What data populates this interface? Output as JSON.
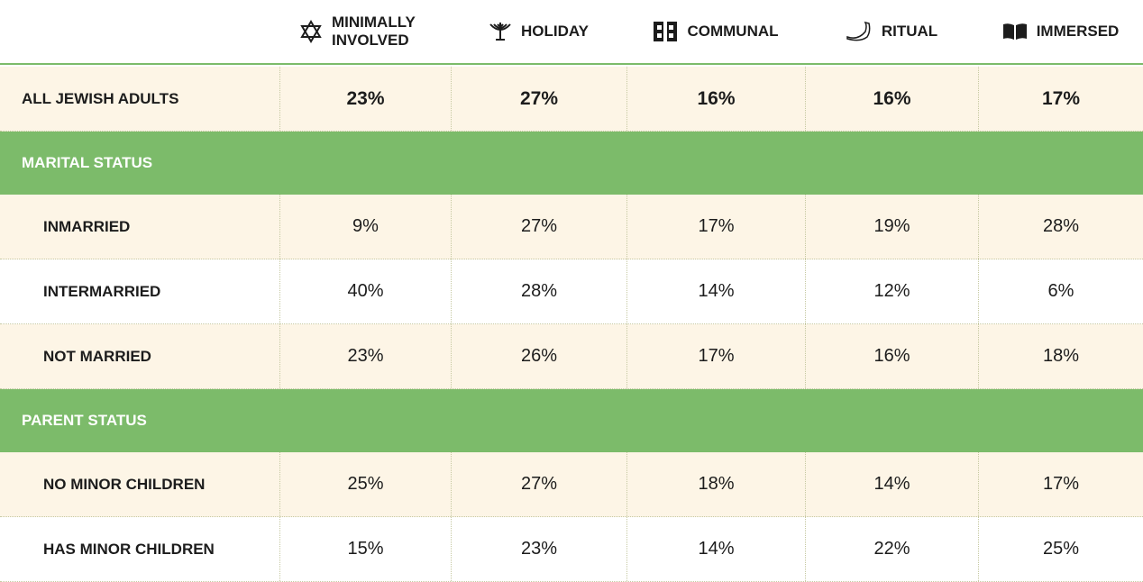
{
  "table": {
    "columns": [
      "MINIMALLY INVOLVED",
      "HOLIDAY",
      "COMMUNAL",
      "RITUAL",
      "IMMERSED"
    ],
    "rows": [
      {
        "label": "ALL JEWISH ADULTS",
        "values": [
          "23%",
          "27%",
          "16%",
          "16%",
          "17%"
        ]
      },
      {
        "section": "MARITAL STATUS"
      },
      {
        "label": "INMARRIED",
        "values": [
          "9%",
          "27%",
          "17%",
          "19%",
          "28%"
        ]
      },
      {
        "label": "INTERMARRIED",
        "values": [
          "40%",
          "28%",
          "14%",
          "12%",
          "6%"
        ]
      },
      {
        "label": "NOT MARRIED",
        "values": [
          "23%",
          "26%",
          "17%",
          "16%",
          "18%"
        ]
      },
      {
        "section": "PARENT STATUS"
      },
      {
        "label": "NO MINOR CHILDREN",
        "values": [
          "25%",
          "27%",
          "18%",
          "14%",
          "17%"
        ]
      },
      {
        "label": "HAS MINOR CHILDREN",
        "values": [
          "15%",
          "23%",
          "14%",
          "22%",
          "25%"
        ]
      }
    ]
  }
}
